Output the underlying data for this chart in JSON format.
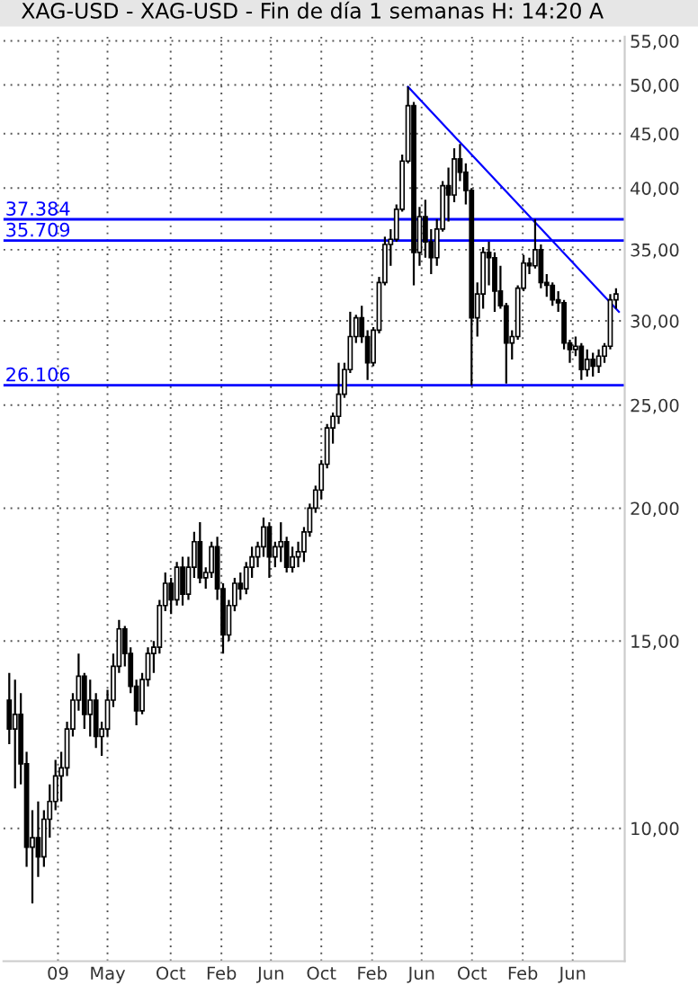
{
  "chart_data": {
    "type": "candlestick",
    "title": "XAG-USD - XAG-USD - Fin de día 1 semanas H: 14:20 A",
    "x": [
      "2008-09-05",
      "2008-09-19",
      "2008-10-03",
      "2008-10-17",
      "2008-10-31",
      "2008-11-14",
      "2008-11-28",
      "2008-12-12",
      "2008-12-26",
      "2009-01-09",
      "2009-01-23",
      "2009-02-06",
      "2009-02-20",
      "2009-03-06",
      "2009-03-20",
      "2009-04-03",
      "2009-04-17",
      "2009-05-01",
      "2009-05-15",
      "2009-05-29",
      "2009-06-12",
      "2009-06-26",
      "2009-07-10",
      "2009-07-24",
      "2009-08-07",
      "2009-08-21",
      "2009-09-04",
      "2009-09-18",
      "2009-10-02",
      "2009-10-16",
      "2009-10-30",
      "2009-11-13",
      "2009-11-27",
      "2009-12-11",
      "2009-12-25",
      "2010-01-08",
      "2010-01-22",
      "2010-02-05",
      "2010-02-19",
      "2010-03-05",
      "2010-03-19",
      "2010-04-02",
      "2010-04-16",
      "2010-04-30",
      "2010-05-14",
      "2010-05-28",
      "2010-06-11",
      "2010-06-25",
      "2010-07-09",
      "2010-07-23",
      "2010-08-06",
      "2010-08-20",
      "2010-09-03",
      "2010-09-17",
      "2010-10-01",
      "2010-10-15",
      "2010-10-29",
      "2010-11-12",
      "2010-11-26",
      "2010-12-10",
      "2010-12-24",
      "2011-01-07",
      "2011-01-21",
      "2011-02-04",
      "2011-02-18",
      "2011-03-04",
      "2011-03-18",
      "2011-04-01",
      "2011-04-15",
      "2011-04-29",
      "2011-05-13",
      "2011-05-27",
      "2011-06-10",
      "2011-06-24",
      "2011-07-08",
      "2011-07-22",
      "2011-08-05",
      "2011-08-19",
      "2011-09-02",
      "2011-09-16",
      "2011-09-30",
      "2011-10-14",
      "2011-10-28",
      "2011-11-11",
      "2011-11-25",
      "2011-12-09",
      "2011-12-23",
      "2012-01-06",
      "2012-01-20",
      "2012-02-03",
      "2012-02-17",
      "2012-03-02",
      "2012-03-16",
      "2012-03-30",
      "2012-04-13",
      "2012-04-27",
      "2012-05-11",
      "2012-05-25",
      "2012-06-08",
      "2012-06-22",
      "2012-07-06",
      "2012-07-20",
      "2012-08-03",
      "2012-08-17",
      "2012-08-31",
      "2012-09-14"
    ],
    "ohlc": [
      [
        13.2,
        14.0,
        12.0,
        12.4
      ],
      [
        12.4,
        13.8,
        10.9,
        12.8
      ],
      [
        12.8,
        13.4,
        11.0,
        11.5
      ],
      [
        11.5,
        11.8,
        9.2,
        9.6
      ],
      [
        9.6,
        10.4,
        8.5,
        9.8
      ],
      [
        9.8,
        10.6,
        9.0,
        9.4
      ],
      [
        9.4,
        10.4,
        9.2,
        10.2
      ],
      [
        10.2,
        11.0,
        9.8,
        10.6
      ],
      [
        10.6,
        11.6,
        10.4,
        11.2
      ],
      [
        11.2,
        11.8,
        10.6,
        11.4
      ],
      [
        11.4,
        12.6,
        11.2,
        12.4
      ],
      [
        12.4,
        13.4,
        12.2,
        13.2
      ],
      [
        13.2,
        14.6,
        12.9,
        13.9
      ],
      [
        13.9,
        14.0,
        12.4,
        12.8
      ],
      [
        12.8,
        13.8,
        12.2,
        13.2
      ],
      [
        13.2,
        13.4,
        11.9,
        12.2
      ],
      [
        12.2,
        12.6,
        11.7,
        12.4
      ],
      [
        12.4,
        13.5,
        12.2,
        13.2
      ],
      [
        13.2,
        14.6,
        13.0,
        14.2
      ],
      [
        14.2,
        15.7,
        14.0,
        15.4
      ],
      [
        15.4,
        15.5,
        14.2,
        14.6
      ],
      [
        14.6,
        14.8,
        13.4,
        13.6
      ],
      [
        13.6,
        13.8,
        12.5,
        12.9
      ],
      [
        12.9,
        14.0,
        12.8,
        13.8
      ],
      [
        13.8,
        14.8,
        13.6,
        14.6
      ],
      [
        14.6,
        15.0,
        14.0,
        14.8
      ],
      [
        14.8,
        16.4,
        14.6,
        16.2
      ],
      [
        16.2,
        17.4,
        16.0,
        17.0
      ],
      [
        17.0,
        17.2,
        15.9,
        16.4
      ],
      [
        16.4,
        17.8,
        16.2,
        17.6
      ],
      [
        17.6,
        18.0,
        16.2,
        16.6
      ],
      [
        16.6,
        18.0,
        16.4,
        17.6
      ],
      [
        17.6,
        19.0,
        17.2,
        18.6
      ],
      [
        18.6,
        19.4,
        17.0,
        17.2
      ],
      [
        17.2,
        17.6,
        16.8,
        17.4
      ],
      [
        17.4,
        18.6,
        17.2,
        18.4
      ],
      [
        18.4,
        18.8,
        16.4,
        16.8
      ],
      [
        16.8,
        17.0,
        14.6,
        15.2
      ],
      [
        15.2,
        16.4,
        15.0,
        16.2
      ],
      [
        16.2,
        17.2,
        16.0,
        17.0
      ],
      [
        17.0,
        17.4,
        16.4,
        16.8
      ],
      [
        16.8,
        17.8,
        16.6,
        17.6
      ],
      [
        17.6,
        18.4,
        17.2,
        18.0
      ],
      [
        18.0,
        18.6,
        17.6,
        18.4
      ],
      [
        18.4,
        19.6,
        18.0,
        19.2
      ],
      [
        19.2,
        19.4,
        17.2,
        18.0
      ],
      [
        18.0,
        18.6,
        17.6,
        18.4
      ],
      [
        18.4,
        19.4,
        17.8,
        18.6
      ],
      [
        18.6,
        18.8,
        17.4,
        17.6
      ],
      [
        17.6,
        18.4,
        17.4,
        18.0
      ],
      [
        18.0,
        18.6,
        17.6,
        18.2
      ],
      [
        18.2,
        19.2,
        17.8,
        19.0
      ],
      [
        19.0,
        20.2,
        18.8,
        20.0
      ],
      [
        20.0,
        21.0,
        19.8,
        20.8
      ],
      [
        20.8,
        22.2,
        20.4,
        22.0
      ],
      [
        22.0,
        24.0,
        21.8,
        23.8
      ],
      [
        23.8,
        24.6,
        23.0,
        24.4
      ],
      [
        24.4,
        27.4,
        24.0,
        25.6
      ],
      [
        25.6,
        27.4,
        25.4,
        27.0
      ],
      [
        27.0,
        30.6,
        26.8,
        29.0
      ],
      [
        29.0,
        30.4,
        28.6,
        30.2
      ],
      [
        30.2,
        31.0,
        28.6,
        29.0
      ],
      [
        29.0,
        29.4,
        26.4,
        27.4
      ],
      [
        27.4,
        29.6,
        27.2,
        29.4
      ],
      [
        29.4,
        33.0,
        29.2,
        32.6
      ],
      [
        32.6,
        36.0,
        32.4,
        35.4
      ],
      [
        35.4,
        36.6,
        33.8,
        35.8
      ],
      [
        35.8,
        38.6,
        35.6,
        38.2
      ],
      [
        38.2,
        43.0,
        38.0,
        42.4
      ],
      [
        42.4,
        49.8,
        42.2,
        47.8
      ],
      [
        47.8,
        48.2,
        32.4,
        34.8
      ],
      [
        34.8,
        38.4,
        33.8,
        37.6
      ],
      [
        37.6,
        39.0,
        34.4,
        35.6
      ],
      [
        35.6,
        36.6,
        33.2,
        34.4
      ],
      [
        34.4,
        37.4,
        33.8,
        36.6
      ],
      [
        36.6,
        40.6,
        36.4,
        40.2
      ],
      [
        40.2,
        41.8,
        37.2,
        39.4
      ],
      [
        39.4,
        43.6,
        38.8,
        42.6
      ],
      [
        42.6,
        44.0,
        40.6,
        41.4
      ],
      [
        41.4,
        42.2,
        38.6,
        39.8
      ],
      [
        39.8,
        40.0,
        26.1,
        30.2
      ],
      [
        30.2,
        32.6,
        29.0,
        31.8
      ],
      [
        31.8,
        35.2,
        30.8,
        34.8
      ],
      [
        34.8,
        35.6,
        32.4,
        34.4
      ],
      [
        34.4,
        34.8,
        30.6,
        32.0
      ],
      [
        32.0,
        33.8,
        30.8,
        31.0
      ],
      [
        31.0,
        31.2,
        26.2,
        28.6
      ],
      [
        28.6,
        29.4,
        27.6,
        29.0
      ],
      [
        29.0,
        32.4,
        28.8,
        32.2
      ],
      [
        32.2,
        34.6,
        32.0,
        34.0
      ],
      [
        34.0,
        34.4,
        33.2,
        33.8
      ],
      [
        33.8,
        37.4,
        33.6,
        35.0
      ],
      [
        35.0,
        35.4,
        32.2,
        32.6
      ],
      [
        32.6,
        33.2,
        31.6,
        32.4
      ],
      [
        32.4,
        32.6,
        31.0,
        31.4
      ],
      [
        31.4,
        32.0,
        30.6,
        31.2
      ],
      [
        31.2,
        31.4,
        28.2,
        28.6
      ],
      [
        28.6,
        28.8,
        27.4,
        28.2
      ],
      [
        28.2,
        29.0,
        27.8,
        28.4
      ],
      [
        28.4,
        28.6,
        26.4,
        27.0
      ],
      [
        27.0,
        28.2,
        26.6,
        27.6
      ],
      [
        27.6,
        28.0,
        26.6,
        27.2
      ],
      [
        27.2,
        28.2,
        26.8,
        27.8
      ],
      [
        27.8,
        28.6,
        27.4,
        28.4
      ],
      [
        28.4,
        31.8,
        28.2,
        31.4
      ],
      [
        31.4,
        32.2,
        30.8,
        31.8
      ]
    ],
    "color": "#000000",
    "series": [
      {
        "type": "line",
        "color": "#0000ff",
        "x": [
          "2011-04-29",
          "2012-09-21"
        ],
        "values": [
          49.8,
          30.6
        ]
      }
    ],
    "ref_lines": [
      {
        "axis": "y",
        "value": 37.384,
        "label": "37.384",
        "color": "#0000ff"
      },
      {
        "axis": "y",
        "value": 35.709,
        "label": "35.709",
        "color": "#0000ff"
      },
      {
        "axis": "y",
        "value": 26.106,
        "label": "26.106",
        "color": "#0000ff"
      }
    ],
    "log": "y",
    "ylim": [
      7.5,
      55.5
    ],
    "yticks": [
      {
        "value": 10,
        "label": "10,00"
      },
      {
        "value": 15,
        "label": "15,00"
      },
      {
        "value": 20,
        "label": "20,00"
      },
      {
        "value": 25,
        "label": "25,00"
      },
      {
        "value": 30,
        "label": "30,00"
      },
      {
        "value": 35,
        "label": "35,00"
      },
      {
        "value": 40,
        "label": "40,00"
      },
      {
        "value": 45,
        "label": "45,00"
      },
      {
        "value": 50,
        "label": "50,00"
      },
      {
        "value": 55,
        "label": "55,00"
      }
    ],
    "xlim": [
      "2008-08-22",
      "2012-10-05"
    ],
    "xticks": [
      {
        "value": "2009-01-01",
        "label": "09"
      },
      {
        "value": "2009-05-01",
        "label": "May"
      },
      {
        "value": "2009-10-01",
        "label": "Oct"
      },
      {
        "value": "2010-02-01",
        "label": "Feb"
      },
      {
        "value": "2010-06-01",
        "label": "Jun"
      },
      {
        "value": "2010-10-01",
        "label": "Oct"
      },
      {
        "value": "2011-02-01",
        "label": "Feb"
      },
      {
        "value": "2011-06-01",
        "label": "Jun"
      },
      {
        "value": "2011-10-01",
        "label": "Oct"
      },
      {
        "value": "2012-02-01",
        "label": "Feb"
      },
      {
        "value": "2012-06-01",
        "label": "Jun"
      }
    ],
    "grid": true,
    "line_style": "solid"
  }
}
